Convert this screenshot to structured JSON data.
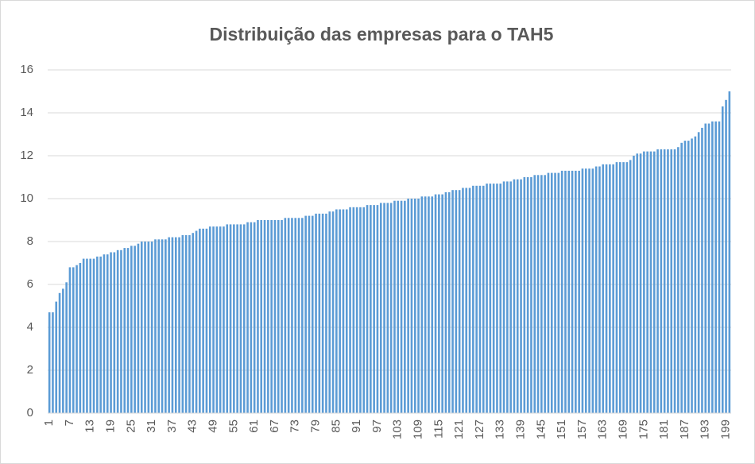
{
  "chart_data": {
    "type": "bar",
    "title": "Distribuição das empresas para o TAH5",
    "categories": [
      "1",
      null,
      null,
      null,
      null,
      null,
      "7",
      null,
      null,
      null,
      null,
      null,
      "13",
      null,
      null,
      null,
      null,
      null,
      "19",
      null,
      null,
      null,
      null,
      null,
      "25",
      null,
      null,
      null,
      null,
      null,
      "31",
      null,
      null,
      null,
      null,
      null,
      "37",
      null,
      null,
      null,
      null,
      null,
      "43",
      null,
      null,
      null,
      null,
      null,
      "49",
      null,
      null,
      null,
      null,
      null,
      "55",
      null,
      null,
      null,
      null,
      null,
      "61",
      null,
      null,
      null,
      null,
      null,
      "67",
      null,
      null,
      null,
      null,
      null,
      "73",
      null,
      null,
      null,
      null,
      null,
      "79",
      null,
      null,
      null,
      null,
      null,
      "85",
      null,
      null,
      null,
      null,
      null,
      "91",
      null,
      null,
      null,
      null,
      null,
      "97",
      null,
      null,
      null,
      null,
      null,
      "103",
      null,
      null,
      null,
      null,
      null,
      "109",
      null,
      null,
      null,
      null,
      null,
      "115",
      null,
      null,
      null,
      null,
      null,
      "121",
      null,
      null,
      null,
      null,
      null,
      "127",
      null,
      null,
      null,
      null,
      null,
      "133",
      null,
      null,
      null,
      null,
      null,
      "139",
      null,
      null,
      null,
      null,
      null,
      "145",
      null,
      null,
      null,
      null,
      null,
      "151",
      null,
      null,
      null,
      null,
      null,
      "157",
      null,
      null,
      null,
      null,
      null,
      "163",
      null,
      null,
      null,
      null,
      null,
      "169",
      null,
      null,
      null,
      null,
      null,
      "175",
      null,
      null,
      null,
      null,
      null,
      "181",
      null,
      null,
      null,
      null,
      null,
      "187",
      null,
      null,
      null,
      null,
      null,
      "193",
      null,
      null,
      null,
      null,
      null,
      "199",
      null
    ],
    "values": [
      4.7,
      4.7,
      5.2,
      5.6,
      5.8,
      6.1,
      6.8,
      6.8,
      6.9,
      7.0,
      7.2,
      7.2,
      7.2,
      7.2,
      7.3,
      7.3,
      7.4,
      7.4,
      7.5,
      7.5,
      7.6,
      7.6,
      7.7,
      7.7,
      7.8,
      7.8,
      7.9,
      8.0,
      8.0,
      8.0,
      8.0,
      8.1,
      8.1,
      8.1,
      8.1,
      8.2,
      8.2,
      8.2,
      8.2,
      8.3,
      8.3,
      8.3,
      8.4,
      8.5,
      8.6,
      8.6,
      8.6,
      8.7,
      8.7,
      8.7,
      8.7,
      8.7,
      8.8,
      8.8,
      8.8,
      8.8,
      8.8,
      8.8,
      8.9,
      8.9,
      8.9,
      9.0,
      9.0,
      9.0,
      9.0,
      9.0,
      9.0,
      9.0,
      9.0,
      9.1,
      9.1,
      9.1,
      9.1,
      9.1,
      9.1,
      9.2,
      9.2,
      9.2,
      9.3,
      9.3,
      9.3,
      9.3,
      9.4,
      9.4,
      9.5,
      9.5,
      9.5,
      9.5,
      9.6,
      9.6,
      9.6,
      9.6,
      9.6,
      9.7,
      9.7,
      9.7,
      9.7,
      9.8,
      9.8,
      9.8,
      9.8,
      9.9,
      9.9,
      9.9,
      9.9,
      10.0,
      10.0,
      10.0,
      10.0,
      10.1,
      10.1,
      10.1,
      10.1,
      10.2,
      10.2,
      10.2,
      10.3,
      10.3,
      10.4,
      10.4,
      10.4,
      10.5,
      10.5,
      10.5,
      10.6,
      10.6,
      10.6,
      10.6,
      10.7,
      10.7,
      10.7,
      10.7,
      10.7,
      10.8,
      10.8,
      10.8,
      10.9,
      10.9,
      10.9,
      11.0,
      11.0,
      11.0,
      11.1,
      11.1,
      11.1,
      11.1,
      11.2,
      11.2,
      11.2,
      11.2,
      11.3,
      11.3,
      11.3,
      11.3,
      11.3,
      11.3,
      11.4,
      11.4,
      11.4,
      11.4,
      11.5,
      11.5,
      11.6,
      11.6,
      11.6,
      11.6,
      11.7,
      11.7,
      11.7,
      11.7,
      11.8,
      12.0,
      12.1,
      12.1,
      12.2,
      12.2,
      12.2,
      12.2,
      12.3,
      12.3,
      12.3,
      12.3,
      12.3,
      12.3,
      12.4,
      12.6,
      12.7,
      12.7,
      12.8,
      12.9,
      13.1,
      13.3,
      13.5,
      13.5,
      13.6,
      13.6,
      13.6,
      14.3,
      14.6,
      15.0
    ],
    "color": "#5b9bd5",
    "ylim": [
      0,
      16
    ],
    "yticks": [
      0,
      2,
      4,
      6,
      8,
      10,
      12,
      14,
      16
    ],
    "grid": true
  }
}
